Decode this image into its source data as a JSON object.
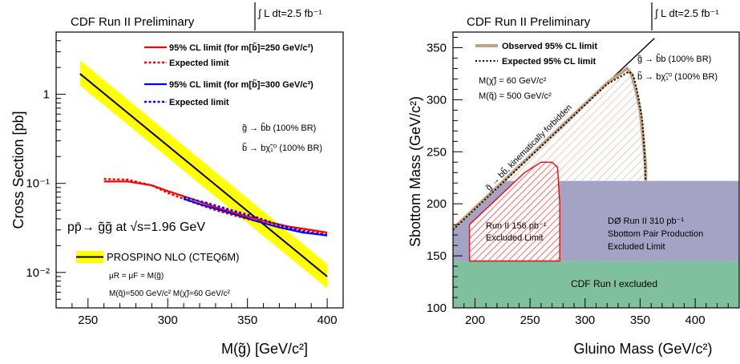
{
  "chart_data": [
    {
      "type": "line",
      "title": "CDF Run II Preliminary",
      "luminosity": "∫ L dt=2.5 fb⁻¹",
      "xlabel": "M(g̃) [GeV/c²]",
      "ylabel": "Cross Section [pb]",
      "xlim": [
        230,
        410
      ],
      "ylim": [
        0.004,
        5
      ],
      "yscale": "log",
      "x_ticks": [
        "250",
        "300",
        "350",
        "400"
      ],
      "y_ticks": [
        {
          "value": 1,
          "label": "1"
        },
        {
          "value": 0.1,
          "label": "10⁻¹"
        },
        {
          "value": 0.01,
          "label": "10⁻²"
        }
      ],
      "annotations": {
        "process": "pp̄→ g̃g̃ at √s=1.96 GeV",
        "decay1": "g̃ → b̃b (100% BR)",
        "decay2": "b̃ → bχ̃₁⁰ (100% BR)",
        "scale": "μR = μF = M(g̃)",
        "masses": "M(q̃)=500 GeV/c²   M(χ̃)=60 GeV/c²"
      },
      "series": [
        {
          "name": "PROSPINO NLO (CTEQ6M)",
          "color": "#000000",
          "band_color": "#ffff00",
          "x": [
            245,
            400
          ],
          "y": [
            1.7,
            0.009
          ],
          "band_lower": [
            1.25,
            0.0066
          ],
          "band_upper": [
            2.4,
            0.0124
          ]
        },
        {
          "name": "95% CL limit (for m[b̃]=250 GeV/c²)",
          "color": "#ff0000",
          "style": "solid",
          "x": [
            260,
            275,
            290,
            300,
            315,
            330,
            345,
            360,
            375,
            390,
            400
          ],
          "y": [
            0.105,
            0.105,
            0.095,
            0.082,
            0.067,
            0.054,
            0.045,
            0.038,
            0.033,
            0.03,
            0.028
          ]
        },
        {
          "name": "Expected limit",
          "color": "#ff0000",
          "style": "dotted",
          "x": [
            260,
            275,
            290,
            300,
            315,
            330,
            345,
            360,
            375,
            390,
            400
          ],
          "y": [
            0.112,
            0.11,
            0.095,
            0.078,
            0.062,
            0.05,
            0.042,
            0.036,
            0.032,
            0.029,
            0.027
          ]
        },
        {
          "name": "95% CL limit (for m[b̃]=300 GeV/c²)",
          "color": "#0000ff",
          "style": "solid",
          "x": [
            310,
            325,
            340,
            355,
            370,
            385,
            400
          ],
          "y": [
            0.067,
            0.055,
            0.046,
            0.038,
            0.032,
            0.028,
            0.026
          ]
        },
        {
          "name": "Expected limit",
          "color": "#0000ff",
          "style": "dotted",
          "x": [
            310,
            325,
            340,
            355,
            370,
            385,
            400
          ],
          "y": [
            0.07,
            0.06,
            0.05,
            0.042,
            0.034,
            0.029,
            0.026
          ]
        }
      ]
    },
    {
      "type": "area",
      "title": "CDF Run II Preliminary",
      "luminosity": "∫ L dt=2.5 fb⁻¹",
      "xlabel": "Gluino Mass (GeV/c²)",
      "ylabel": "Sbottom Mass (GeV/c²)",
      "xlim": [
        180,
        440
      ],
      "ylim": [
        100,
        365
      ],
      "x_ticks": [
        200,
        250,
        300,
        350,
        400
      ],
      "y_ticks": [
        100,
        150,
        200,
        250,
        300,
        350
      ],
      "annotations": {
        "decay1": "g̃ → b̃b (100% BR)",
        "decay2": "b̃ → bχ̃₁⁰ (100% BR)",
        "m_chi": "M(χ̃) = 60 GeV/c²",
        "m_q": "M(q̃) = 500 GeV/c²",
        "forbidden": "g̃ → bb̃, kinematically forbidden"
      },
      "regions": [
        {
          "name": "CDF Run I excluded",
          "color": "#7fc09f",
          "y_range": [
            100,
            145
          ]
        },
        {
          "name": "DØ Run II 310 pb⁻¹",
          "label_lines": [
            "DØ  Run II 310 pb⁻¹",
            "Sbottom Pair Production",
            "Excluded Limit"
          ],
          "color": "#a4a3c6",
          "y_range": [
            145,
            222
          ]
        },
        {
          "name": "Run II 156 pb⁻¹",
          "label_lines": [
            "Run II 156 pb⁻¹",
            "Excluded Limit"
          ],
          "color": "#ff0000",
          "pattern": "hatched",
          "x": [
            195,
            215,
            230,
            245,
            260,
            270,
            275,
            277,
            277,
            195
          ],
          "y": [
            180,
            200,
            215,
            230,
            240,
            240,
            235,
            200,
            145,
            145
          ]
        }
      ],
      "series": [
        {
          "name": "Observed 95% CL limit",
          "color": "#c4a27f",
          "style": "solid",
          "x": [
            180,
            230,
            280,
            320,
            338,
            342,
            346,
            350,
            353,
            355,
            355
          ],
          "y": [
            176,
            226,
            276,
            316,
            330,
            325,
            310,
            290,
            260,
            235,
            222
          ]
        },
        {
          "name": "Expected 95% CL limit",
          "color": "#000000",
          "style": "dotted",
          "x": [
            180,
            230,
            280,
            320,
            340,
            344,
            348,
            352,
            354,
            355
          ],
          "y": [
            175,
            225,
            275,
            315,
            327,
            323,
            305,
            280,
            250,
            222
          ]
        },
        {
          "name": "kinematic boundary",
          "color": "#000000",
          "style": "solid",
          "x": [
            180,
            363
          ],
          "y": [
            176,
            359
          ]
        }
      ]
    }
  ]
}
